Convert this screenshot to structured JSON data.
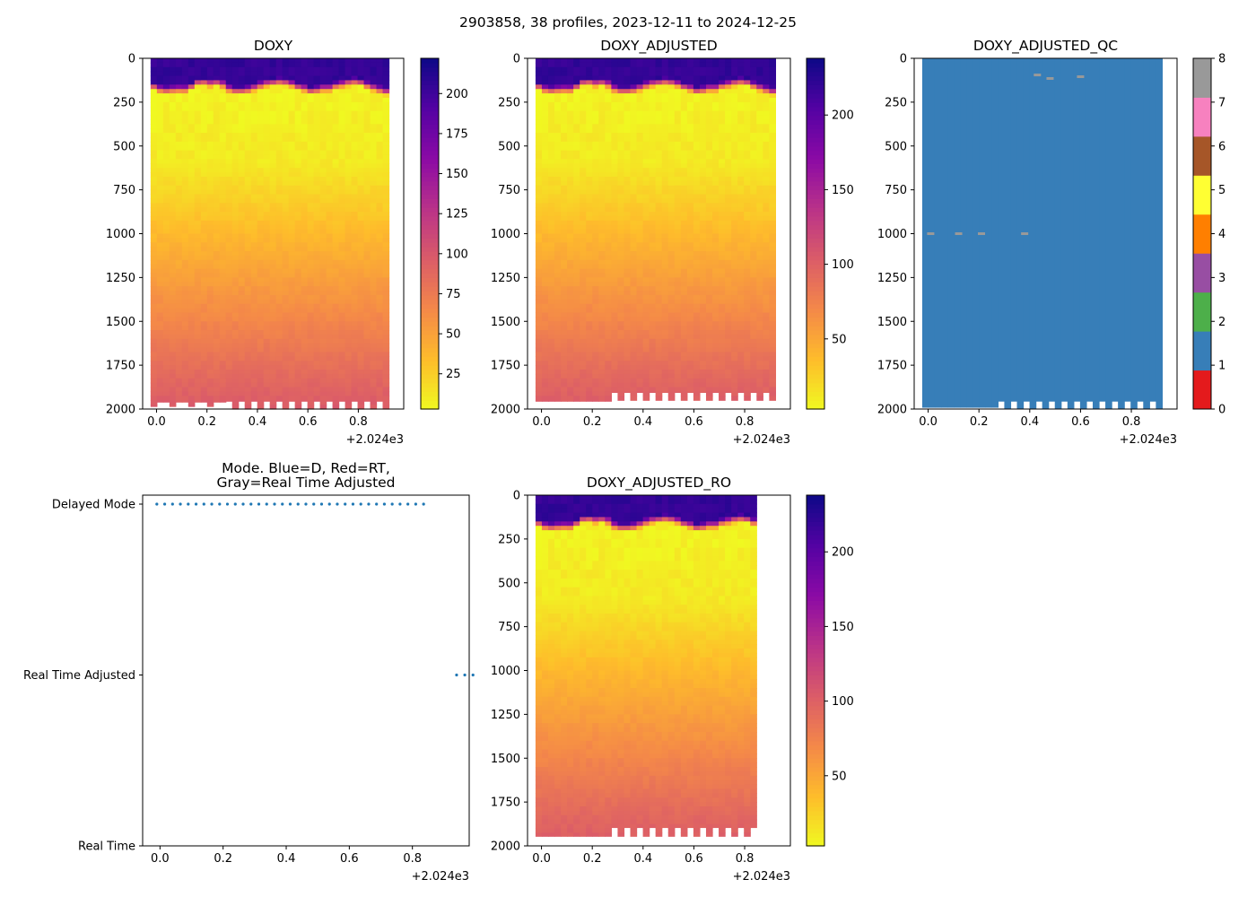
{
  "chart_data": {
    "suptitle": "2903858, 38 profiles, 2023-12-11 to 2024-12-25",
    "n_profiles": 38,
    "x_offset_label": "+2.024e3",
    "x_ticks": [
      "0.0",
      "0.2",
      "0.4",
      "0.6",
      "0.8"
    ],
    "x_range": [
      -0.055,
      0.98
    ],
    "depth_ticks": [
      "0",
      "250",
      "500",
      "750",
      "1000",
      "1250",
      "1500",
      "1750",
      "2000"
    ],
    "depth_range": [
      0,
      2000
    ],
    "panels": [
      {
        "id": "doxy",
        "type": "heatmap",
        "title": "DOXY",
        "colormap": "plasma_r",
        "clim": [
          3,
          222
        ],
        "colorbar_ticks": [
          "25",
          "50",
          "75",
          "100",
          "125",
          "150",
          "175",
          "200"
        ],
        "colorbar_tick_values": [
          25,
          50,
          75,
          100,
          125,
          150,
          175,
          200
        ],
        "profile_bottom_depth_m": 1955
      },
      {
        "id": "doxy_adjusted",
        "type": "heatmap",
        "title": "DOXY_ADJUSTED",
        "colormap": "plasma_r",
        "clim": [
          3,
          238
        ],
        "colorbar_ticks": [
          "50",
          "100",
          "150",
          "200"
        ],
        "colorbar_tick_values": [
          50,
          100,
          150,
          200
        ],
        "profile_bottom_depth_m": 1955
      },
      {
        "id": "doxy_adjusted_qc",
        "type": "heatmap",
        "title": "DOXY_ADJUSTED_QC",
        "colormap": "qc_flags",
        "clim": [
          0,
          8
        ],
        "colorbar_ticks": [
          "0",
          "1",
          "2",
          "3",
          "4",
          "5",
          "6",
          "7",
          "8"
        ],
        "qc_colors": [
          "#e41a1c",
          "#377eb8",
          "#4daf4a",
          "#984ea3",
          "#ff7f00",
          "#ffff33",
          "#a65628",
          "#f781bf",
          "#999999"
        ],
        "dominant_flag": 1,
        "flag_8_markers": [
          {
            "x": 0.01,
            "depth": 1000
          },
          {
            "x": 0.12,
            "depth": 1000
          },
          {
            "x": 0.21,
            "depth": 1000
          },
          {
            "x": 0.38,
            "depth": 1000
          },
          {
            "x": 0.43,
            "depth": 95
          },
          {
            "x": 0.48,
            "depth": 115
          },
          {
            "x": 0.6,
            "depth": 105
          }
        ]
      },
      {
        "id": "mode",
        "type": "scatter",
        "title_lines": [
          "Mode. Blue=D, Red=RT,",
          "Gray=Real Time Adjusted"
        ],
        "y_categories": [
          "Real Time",
          "Real Time Adjusted",
          "Delayed Mode"
        ],
        "delayed_mode_count": 35,
        "real_time_adjusted_count": 3,
        "x_range": [
          -0.055,
          0.98
        ]
      },
      {
        "id": "doxy_adjusted_ro",
        "type": "heatmap",
        "title": "DOXY_ADJUSTED_RO",
        "colormap": "plasma_r",
        "clim": [
          3,
          238
        ],
        "colorbar_ticks": [
          "50",
          "100",
          "150",
          "200"
        ],
        "colorbar_tick_values": [
          50,
          100,
          150,
          200
        ],
        "profiles_shown": 35
      }
    ],
    "layout_note": "2x3 grid; bottom-right cell empty"
  }
}
